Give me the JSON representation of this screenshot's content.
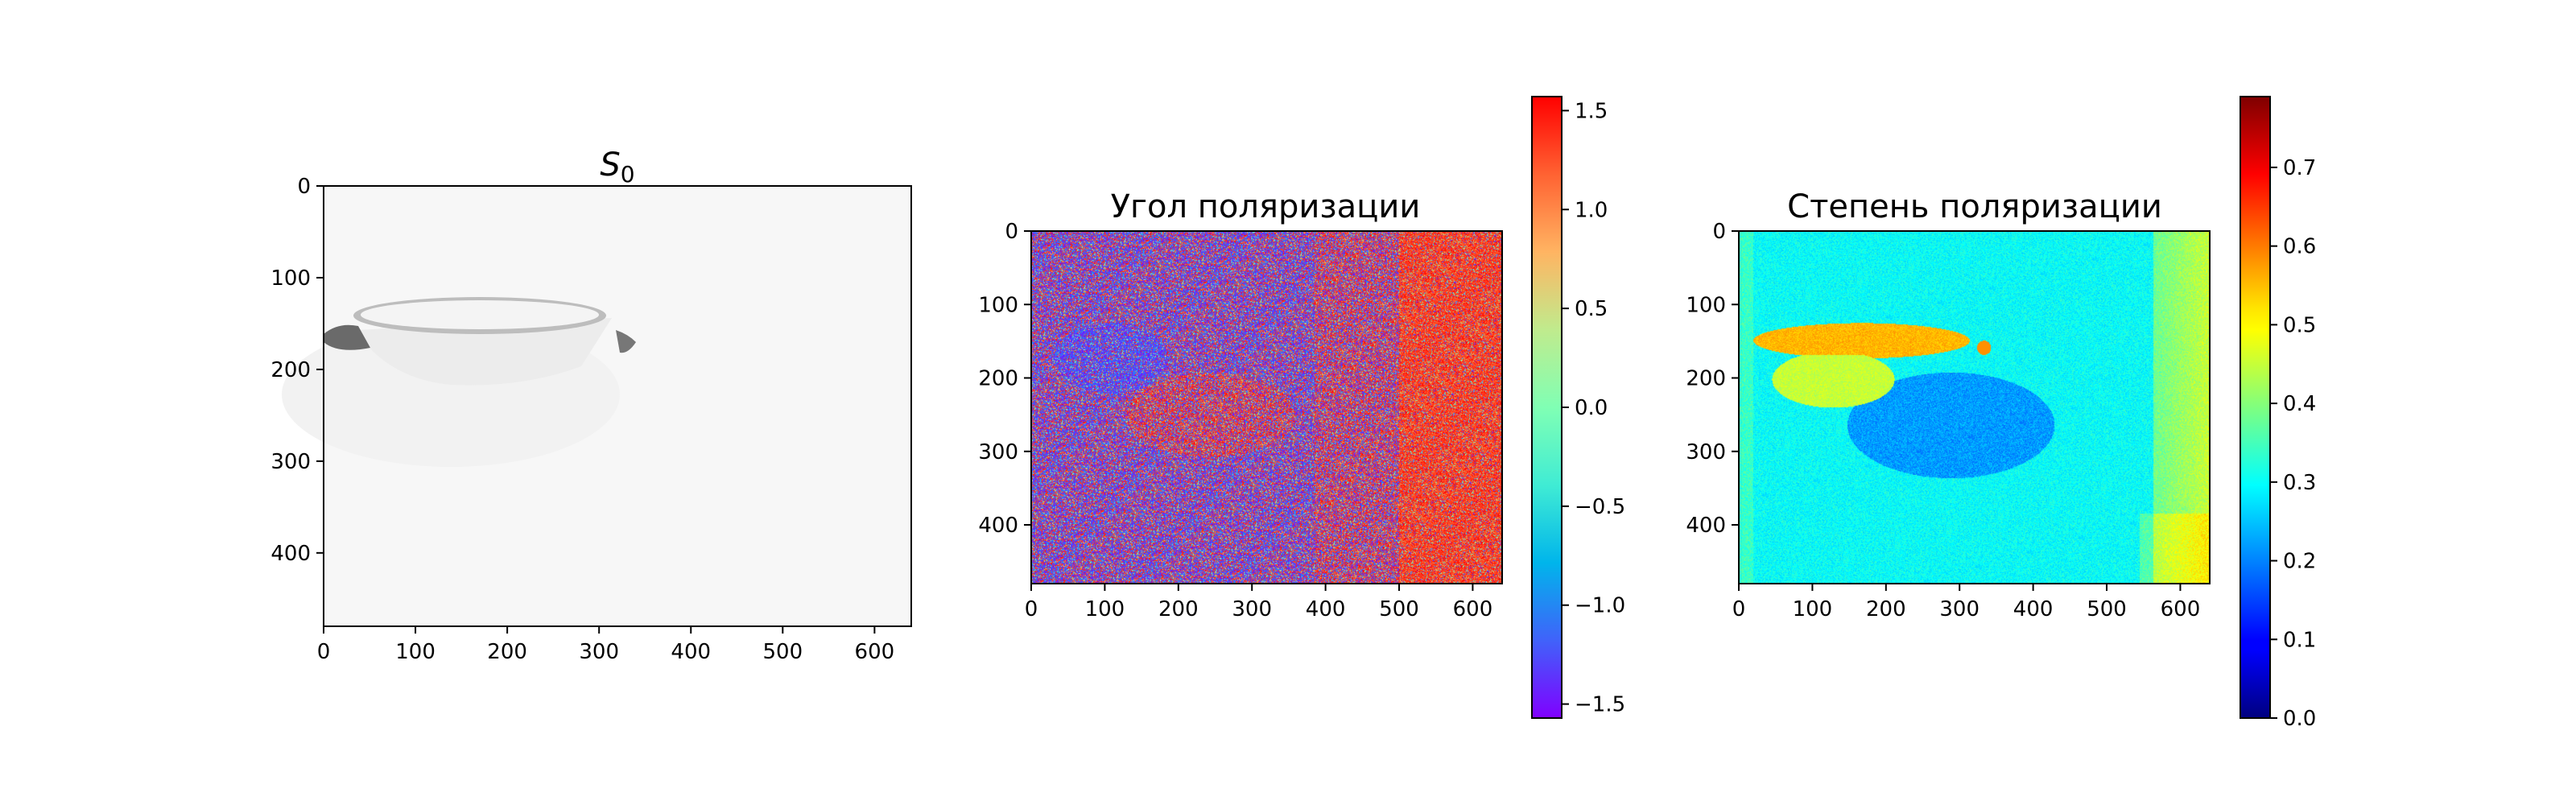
{
  "chart_data": [
    {
      "type": "heatmap",
      "title_symbol": "S",
      "title_subscript": "0",
      "colormap": "gray_r",
      "x_ticks": [
        "0",
        "100",
        "200",
        "300",
        "400",
        "500",
        "600"
      ],
      "y_ticks": [
        "0",
        "100",
        "200",
        "300",
        "400"
      ],
      "xlim": [
        0,
        640
      ],
      "ylim": [
        480,
        0
      ],
      "content": "bright near-white image of a cup seen from the side; cup rim ellipse at rows ~125-175, cols ~20-340"
    },
    {
      "type": "heatmap",
      "title": "Угол поляризации",
      "colormap": "rainbow",
      "x_ticks": [
        "0",
        "100",
        "200",
        "300",
        "400",
        "500",
        "600"
      ],
      "y_ticks": [
        "0",
        "100",
        "200",
        "300",
        "400"
      ],
      "xlim": [
        0,
        640
      ],
      "ylim": [
        480,
        0
      ],
      "colorbar": {
        "vmin": -1.5708,
        "vmax": 1.5708,
        "ticks": [
          "1.5",
          "1.0",
          "0.5",
          "0.0",
          "−0.5",
          "−1.0",
          "−1.5"
        ],
        "tick_values": [
          1.5,
          1.0,
          0.5,
          0.0,
          -0.5,
          -1.0,
          -1.5
        ]
      },
      "content": "noisy angle map: mostly purple/red speckle, right third strongly red"
    },
    {
      "type": "heatmap",
      "title": "Степень поляризации",
      "colormap": "jet",
      "x_ticks": [
        "0",
        "100",
        "200",
        "300",
        "400",
        "500",
        "600"
      ],
      "y_ticks": [
        "0",
        "100",
        "200",
        "300",
        "400"
      ],
      "xlim": [
        0,
        640
      ],
      "ylim": [
        480,
        0
      ],
      "colorbar": {
        "vmin": 0.0,
        "vmax": 0.79,
        "ticks": [
          "0.7",
          "0.6",
          "0.5",
          "0.4",
          "0.3",
          "0.2",
          "0.1",
          "0.0"
        ],
        "tick_values": [
          0.7,
          0.6,
          0.5,
          0.4,
          0.3,
          0.2,
          0.1,
          0.0
        ]
      },
      "content": "degree map: cyan background ~0.3, cup rim bright yellow ~0.55, shadow region blue ~0.2, right edge yellow-green"
    }
  ]
}
